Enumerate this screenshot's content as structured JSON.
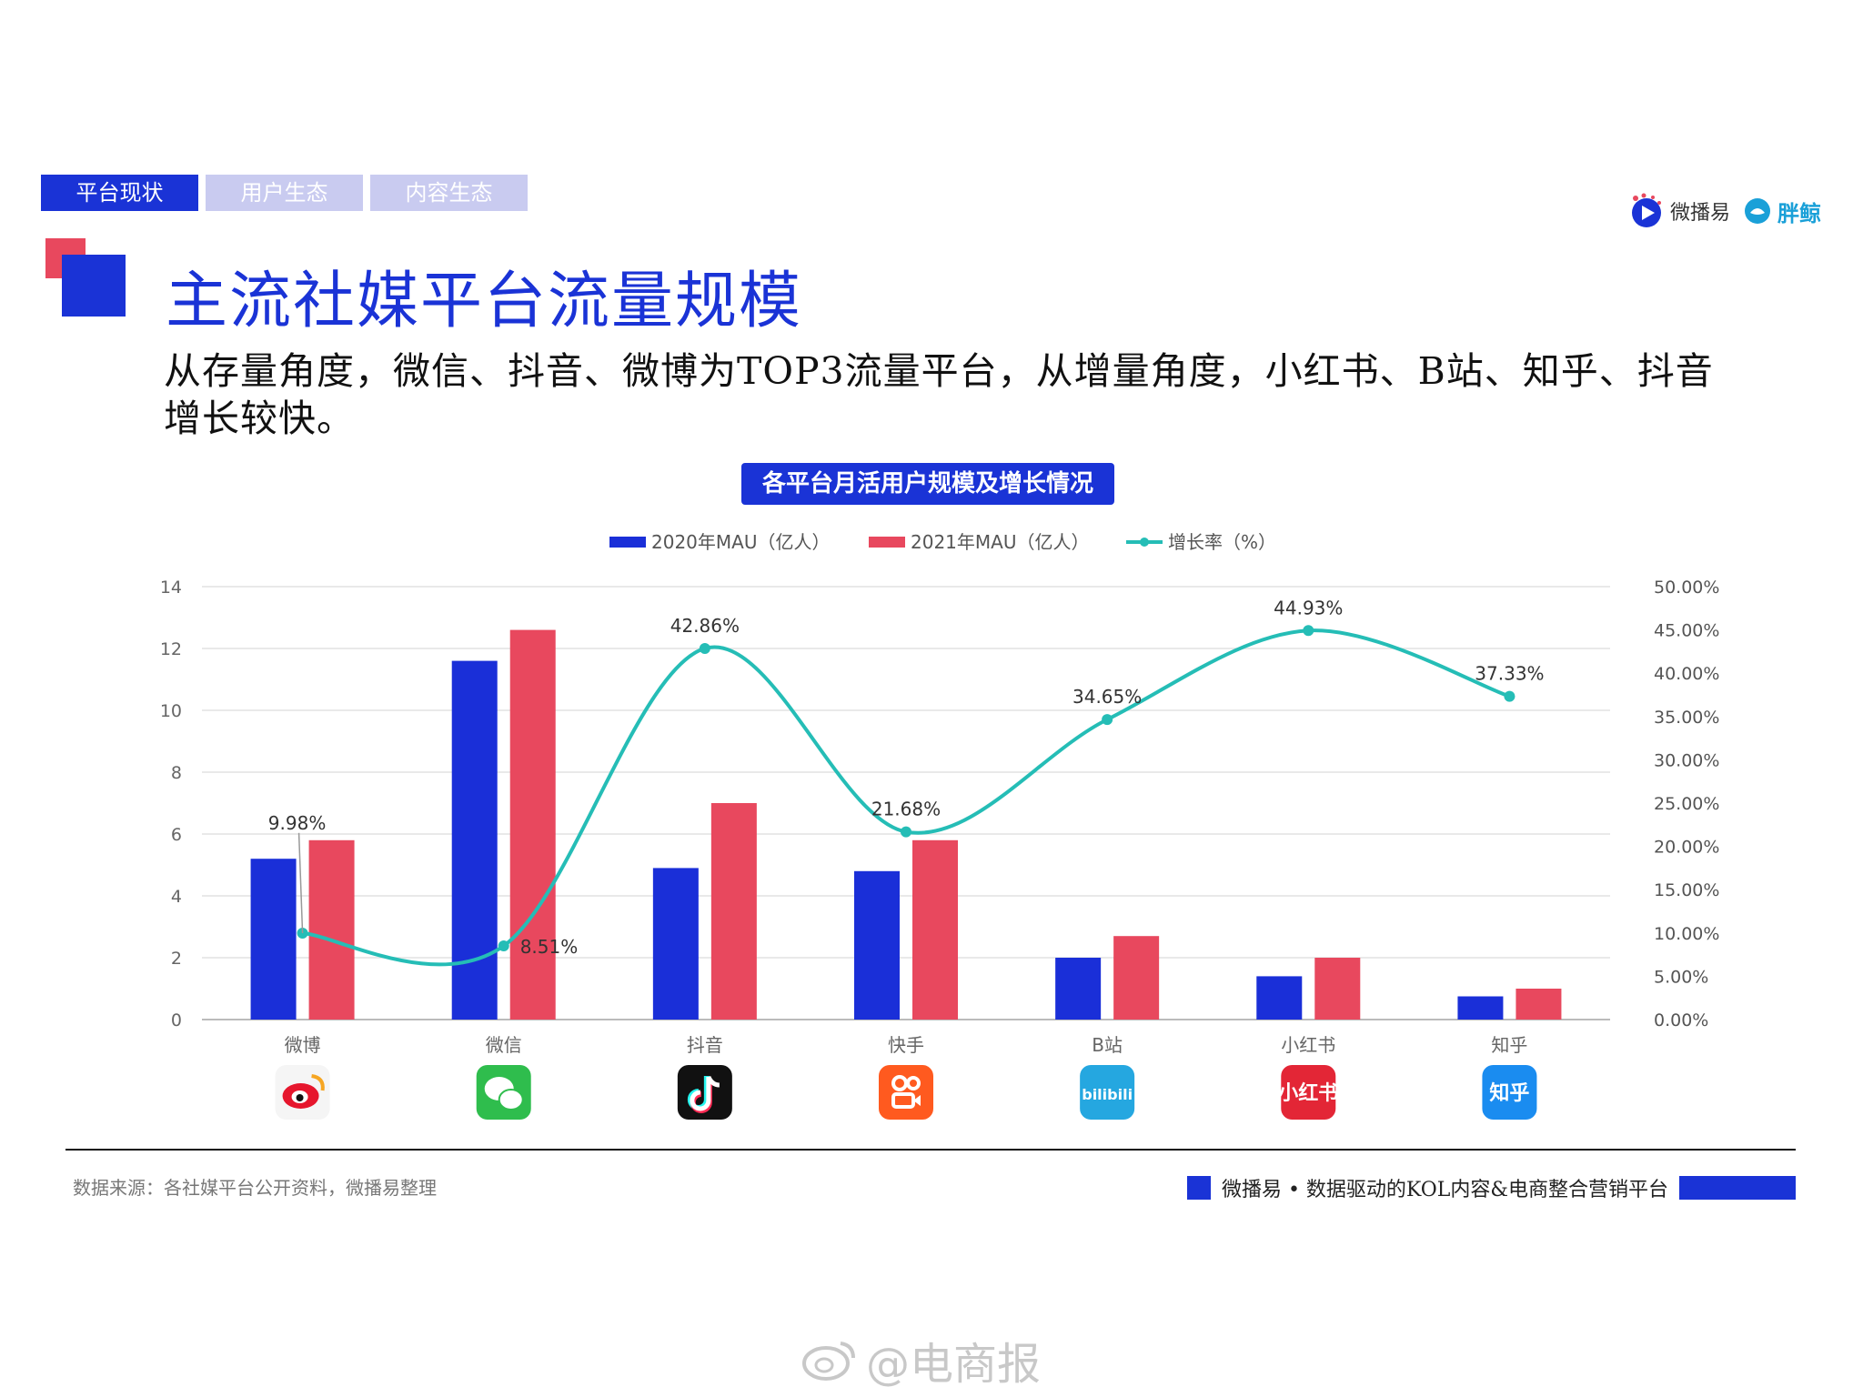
{
  "tabs": [
    {
      "label": "平台现状",
      "active": true
    },
    {
      "label": "用户生态",
      "active": false
    },
    {
      "label": "内容生态",
      "active": false
    }
  ],
  "brand": {
    "name1": "微播易",
    "name2": "胖鲸"
  },
  "header": {
    "title": "主流社媒平台流量规模",
    "subtitle": "从存量角度，微信、抖音、微博为TOP3流量平台，从增量角度，小红书、B站、知乎、抖音增长较快。"
  },
  "chart_title": "各平台月活用户规模及增长情况",
  "chart_data": {
    "type": "bar",
    "title": "各平台月活用户规模及增长情况",
    "categories": [
      "微博",
      "微信",
      "抖音",
      "快手",
      "B站",
      "小红书",
      "知乎"
    ],
    "series": [
      {
        "name": "2020年MAU（亿人）",
        "type": "bar",
        "axis": "left",
        "color": "#1a2fd8",
        "values": [
          5.2,
          11.6,
          4.9,
          4.8,
          2.0,
          1.4,
          0.75
        ]
      },
      {
        "name": "2021年MAU（亿人）",
        "type": "bar",
        "axis": "left",
        "color": "#e8485e",
        "values": [
          5.8,
          12.6,
          7.0,
          5.8,
          2.7,
          2.0,
          1.0
        ]
      },
      {
        "name": "增长率（%）",
        "type": "line",
        "axis": "right",
        "color": "#25bdb6",
        "values": [
          9.98,
          8.51,
          42.86,
          21.68,
          34.65,
          44.93,
          37.33
        ],
        "labels": [
          "9.98%",
          "8.51%",
          "42.86%",
          "21.68%",
          "34.65%",
          "44.93%",
          "37.33%"
        ]
      }
    ],
    "y_left": {
      "min": 0,
      "max": 14,
      "ticks": [
        "0",
        "2",
        "4",
        "6",
        "8",
        "10",
        "12",
        "14"
      ]
    },
    "y_right": {
      "min": 0,
      "max": 50,
      "ticks": [
        "0.00%",
        "5.00%",
        "10.00%",
        "15.00%",
        "20.00%",
        "25.00%",
        "30.00%",
        "35.00%",
        "40.00%",
        "45.00%",
        "50.00%"
      ]
    },
    "grid": true,
    "legend_position": "top"
  },
  "app_icons": [
    {
      "platform": "微博",
      "icon": "weibo-icon",
      "bg": "#f5f5f5",
      "text": ""
    },
    {
      "platform": "微信",
      "icon": "wechat-icon",
      "bg": "#2fbd4d",
      "text": ""
    },
    {
      "platform": "抖音",
      "icon": "douyin-icon",
      "bg": "#111111",
      "text": ""
    },
    {
      "platform": "快手",
      "icon": "kuaishou-icon",
      "bg": "#ff5a1f",
      "text": ""
    },
    {
      "platform": "B站",
      "icon": "bilibili-icon",
      "bg": "#25a7e0",
      "text": "bilibili"
    },
    {
      "platform": "小红书",
      "icon": "xiaohongshu-icon",
      "bg": "#e32636",
      "text": "小红书"
    },
    {
      "platform": "知乎",
      "icon": "zhihu-icon",
      "bg": "#1a8cf0",
      "text": "知乎"
    }
  ],
  "footer": {
    "source": "数据来源：各社媒平台公开资料，微播易整理",
    "tagline": "微播易 • 数据驱动的KOL内容&电商整合营销平台"
  },
  "watermark": "@电商报"
}
